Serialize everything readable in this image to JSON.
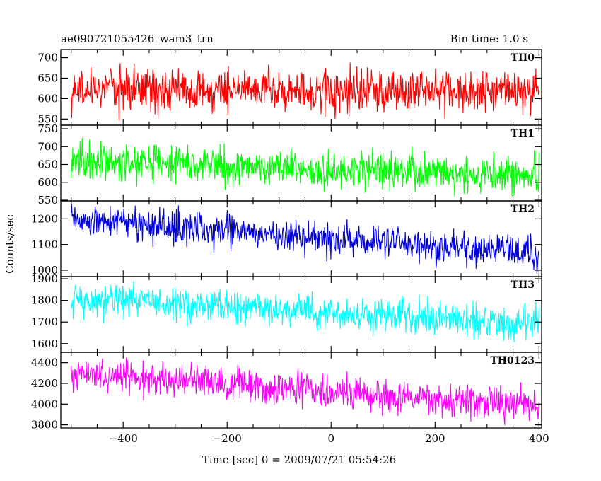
{
  "chart_data": {
    "type": "line",
    "title": "ae090721055426_wam3_trn",
    "subtitle": "Bin time: 1.0 s",
    "xlabel": "Time [sec] 0 = 2009/07/21 05:54:26",
    "ylabel": "Counts/sec",
    "xlim": [
      -520,
      405
    ],
    "x_ticks": [
      -400,
      -200,
      0,
      200,
      400
    ],
    "x_tick_labels": [
      "−400",
      "−200",
      "0",
      "200",
      "400"
    ],
    "x_range": [
      -500,
      400
    ],
    "n_points": 900,
    "panels": [
      {
        "name": "TH0",
        "color": "#ff0000",
        "ylim": [
          535,
          720
        ],
        "y_ticks": [
          550,
          600,
          650,
          700
        ],
        "trend": {
          "start": 622,
          "end": 618
        },
        "noise_amplitude": 58
      },
      {
        "name": "TH1",
        "color": "#00ff00",
        "ylim": [
          548,
          760
        ],
        "y_ticks": [
          550,
          600,
          650,
          700,
          750
        ],
        "trend": {
          "start": 660,
          "end": 620
        },
        "noise_amplitude": 60
      },
      {
        "name": "TH2",
        "color": "#0000dd",
        "ylim": [
          975,
          1270
        ],
        "y_ticks": [
          1000,
          1100,
          1200
        ],
        "trend": {
          "start": 1195,
          "end": 1065
        },
        "noise_amplitude": 75
      },
      {
        "name": "TH3",
        "color": "#00ffff",
        "ylim": [
          1560,
          1910
        ],
        "y_ticks": [
          1600,
          1700,
          1800,
          1900
        ],
        "trend": {
          "start": 1810,
          "end": 1690
        },
        "noise_amplitude": 95
      },
      {
        "name": "TH0123",
        "color": "#ff00ff",
        "ylim": [
          3770,
          4500
        ],
        "y_ticks": [
          3800,
          4000,
          4200,
          4400
        ],
        "trend": {
          "start": 4300,
          "end": 3980
        },
        "noise_amplitude": 180
      }
    ]
  }
}
